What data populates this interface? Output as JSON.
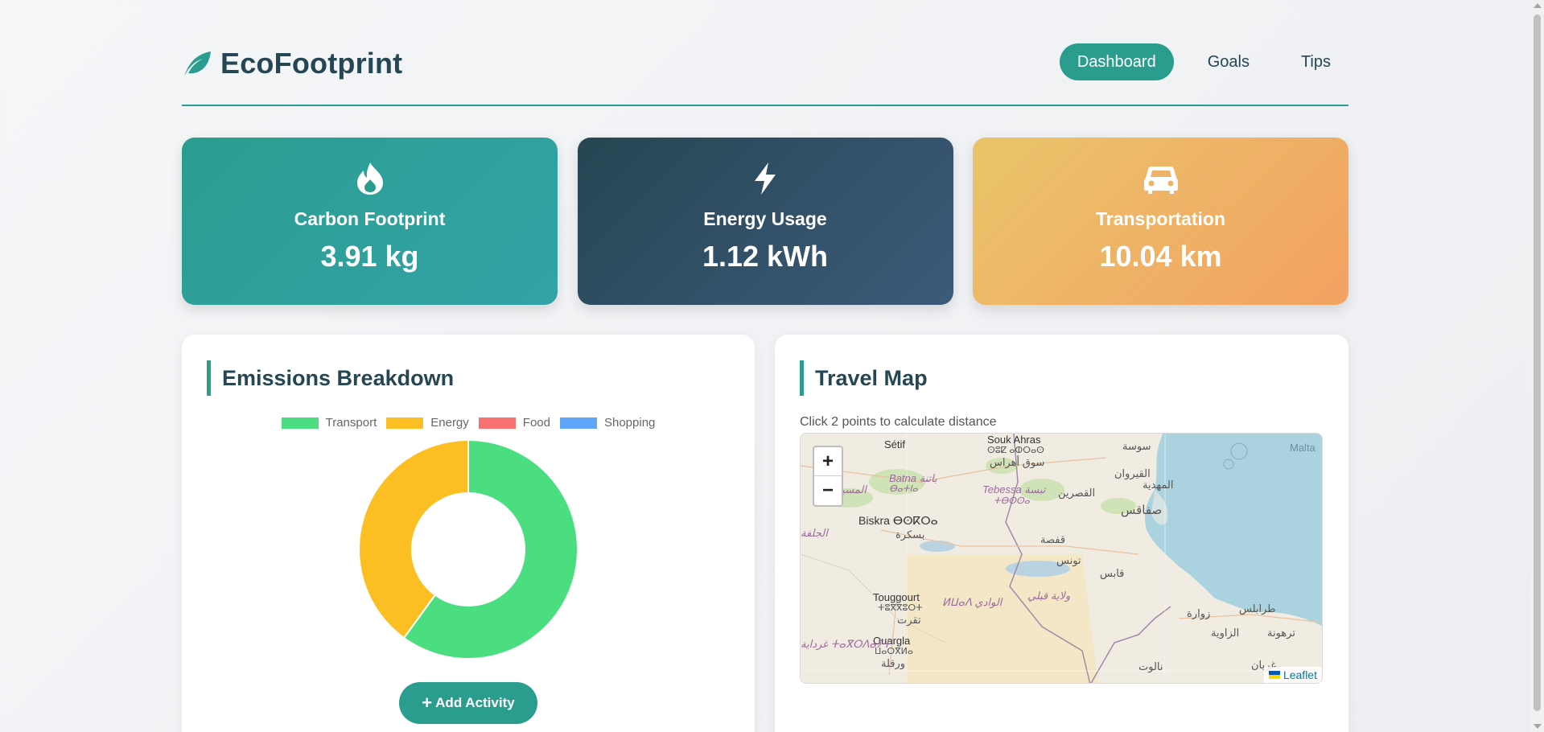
{
  "header": {
    "title": "EcoFootprint",
    "logo_icon": "leaf-icon",
    "nav": [
      {
        "label": "Dashboard",
        "active": true
      },
      {
        "label": "Goals",
        "active": false
      },
      {
        "label": "Tips",
        "active": false
      }
    ]
  },
  "stats": [
    {
      "icon": "flame-icon",
      "label": "Carbon Footprint",
      "value": "3.91 kg"
    },
    {
      "icon": "bolt-icon",
      "label": "Energy Usage",
      "value": "1.12 kWh"
    },
    {
      "icon": "car-icon",
      "label": "Transportation",
      "value": "10.04 km"
    }
  ],
  "emissions": {
    "title": "Emissions Breakdown",
    "add_button_label": "Add Activity",
    "add_icon": "plus-icon"
  },
  "chart_data": {
    "type": "pie",
    "categories": [
      "Transport",
      "Energy",
      "Food",
      "Shopping"
    ],
    "values": [
      60,
      40,
      0,
      0
    ],
    "colors": [
      "#4ade80",
      "#fbbf24",
      "#f87171",
      "#60a5fa"
    ],
    "legend": "top",
    "donut": true
  },
  "travel_map": {
    "title": "Travel Map",
    "hint": "Click 2 points to calculate distance",
    "zoom_in": "+",
    "zoom_out": "−",
    "attribution": "Leaflet",
    "labels": {
      "setif": "Sétif",
      "souk_ahras": "Souk Ahras",
      "souk_ahras_tif": "ⵙⵓⵇ ⴰⵀⵔⴰⵙ",
      "souk_ahras_ar": "سوق أهراس",
      "sousse": "سوسة",
      "malta": "Malta",
      "batna": "Batna باتنة",
      "batna_tif": "ⴱⴰⵜⵏⴰ",
      "msila": "المسيلة",
      "tebessa": "Tebessa تبسة",
      "tebessa_tif": "ⵜⴱⵙⵙⴰ",
      "kairouan": "القيروان",
      "mahdia": "المهدية",
      "kasserine": "القصرين",
      "sfax": "صفاقس",
      "biskra": "Biskra ⴱⵙⴽⵔⴰ",
      "biskra_ar": "بسكرة",
      "djelfa": "الجلفة",
      "gafsa": "قفصة",
      "tunisia": "تونس",
      "gabes": "قابس",
      "touggourt": "Touggourt",
      "touggourt_tif": "ⵜⵓⴳⴳⵓⵔⵜ",
      "touggourt_ar": "تقرت",
      "el_oued": "ⵍⵡⴰⴷ الوادي",
      "kebili": "ولاية قبلي",
      "tripoli": "طرابلس",
      "zuwara": "زوارة",
      "tarhuna": "ترهونة",
      "zawiya": "الزاوية",
      "ouargla": "Ouargla",
      "ouargla_tif": "ⵡⴰⵔⴳⵍⴰ",
      "ouargla_ar": "ورقلة",
      "ghardaia": "غرداية ⵜⴰⴳⵔⴷⴰⵢⵜ",
      "gharyan": "غريان",
      "nalut": "نالوت"
    }
  }
}
